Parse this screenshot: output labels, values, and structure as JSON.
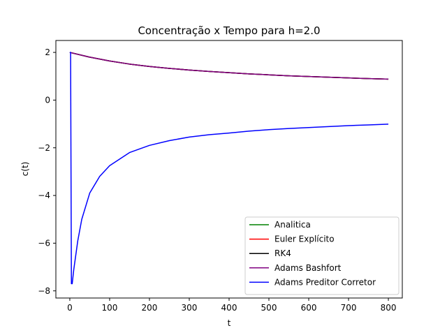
{
  "chart_data": {
    "type": "line",
    "title": "Concentração x Tempo para h=2.0",
    "xlabel": "t",
    "ylabel": "c(t)",
    "xlim": [
      -35,
      835
    ],
    "ylim": [
      -8.3,
      2.5
    ],
    "xticks": [
      0,
      100,
      200,
      300,
      400,
      500,
      600,
      700,
      800
    ],
    "xtick_labels": [
      "0",
      "100",
      "200",
      "300",
      "400",
      "500",
      "600",
      "700",
      "800"
    ],
    "yticks": [
      -8,
      -6,
      -4,
      -2,
      0,
      2
    ],
    "ytick_labels": [
      "−8",
      "−6",
      "−4",
      "−2",
      "0",
      "2"
    ],
    "grid": false,
    "legend_position": "lower-right",
    "series": [
      {
        "name": "Analitica",
        "color": "#008000",
        "x": [
          0,
          50,
          100,
          150,
          200,
          250,
          300,
          350,
          400,
          450,
          500,
          550,
          600,
          650,
          700,
          750,
          800
        ],
        "y": [
          2.0,
          1.8,
          1.64,
          1.51,
          1.41,
          1.33,
          1.26,
          1.2,
          1.15,
          1.1,
          1.06,
          1.02,
          0.99,
          0.96,
          0.93,
          0.9,
          0.88
        ]
      },
      {
        "name": "Euler Explícito",
        "color": "#ff0000",
        "x": [
          0,
          50,
          100,
          150,
          200,
          250,
          300,
          350,
          400,
          450,
          500,
          550,
          600,
          650,
          700,
          750,
          800
        ],
        "y": [
          2.0,
          1.8,
          1.64,
          1.51,
          1.41,
          1.33,
          1.26,
          1.2,
          1.15,
          1.1,
          1.06,
          1.02,
          0.99,
          0.96,
          0.93,
          0.9,
          0.88
        ]
      },
      {
        "name": "RK4",
        "color": "#000000",
        "x": [
          0,
          50,
          100,
          150,
          200,
          250,
          300,
          350,
          400,
          450,
          500,
          550,
          600,
          650,
          700,
          750,
          800
        ],
        "y": [
          2.0,
          1.8,
          1.64,
          1.51,
          1.41,
          1.33,
          1.26,
          1.2,
          1.15,
          1.1,
          1.06,
          1.02,
          0.99,
          0.96,
          0.93,
          0.9,
          0.88
        ]
      },
      {
        "name": "Adams Bashfort",
        "color": "#800080",
        "x": [
          0,
          50,
          100,
          150,
          200,
          250,
          300,
          350,
          400,
          450,
          500,
          550,
          600,
          650,
          700,
          750,
          800
        ],
        "y": [
          2.0,
          1.8,
          1.64,
          1.51,
          1.41,
          1.33,
          1.26,
          1.2,
          1.15,
          1.1,
          1.06,
          1.02,
          0.99,
          0.96,
          0.93,
          0.9,
          0.88
        ]
      },
      {
        "name": "Adams Preditor Corretor",
        "color": "#0000ff",
        "x": [
          0,
          2,
          4,
          6,
          10,
          20,
          30,
          50,
          75,
          100,
          150,
          200,
          250,
          300,
          350,
          400,
          450,
          500,
          550,
          600,
          650,
          700,
          750,
          800
        ],
        "y": [
          2.0,
          2.0,
          -7.7,
          -7.7,
          -7.1,
          -5.9,
          -5.0,
          -3.9,
          -3.2,
          -2.75,
          -2.2,
          -1.9,
          -1.7,
          -1.55,
          -1.45,
          -1.38,
          -1.3,
          -1.24,
          -1.19,
          -1.15,
          -1.11,
          -1.07,
          -1.04,
          -1.01
        ]
      }
    ]
  }
}
